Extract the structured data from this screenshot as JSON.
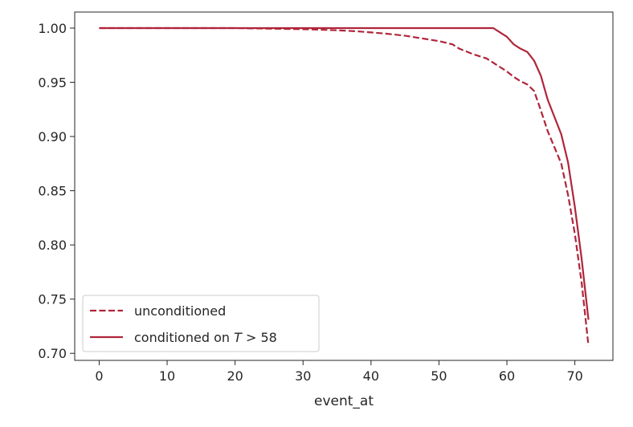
{
  "chart_data": {
    "type": "line",
    "title": "",
    "xlabel": "event_at",
    "ylabel": "",
    "xlim": [
      -3.6,
      75.6
    ],
    "ylim": [
      0.6935,
      1.0148
    ],
    "xticks": [
      0,
      10,
      20,
      30,
      40,
      50,
      60,
      70
    ],
    "yticks": [
      0.7,
      0.75,
      0.8,
      0.85,
      0.9,
      0.95,
      1.0
    ],
    "ytick_labels": [
      "0.70",
      "0.75",
      "0.80",
      "0.85",
      "0.90",
      "0.95",
      "1.00"
    ],
    "grid": false,
    "legend_position": "lower-left",
    "series": [
      {
        "name": "unconditioned",
        "style": "dashed",
        "color": "#b0253a",
        "x": [
          0,
          10,
          20,
          25,
          30,
          35,
          38,
          40,
          42,
          45,
          48,
          50,
          52,
          53,
          55,
          57,
          58,
          59,
          60,
          61,
          62,
          63,
          64,
          65,
          66,
          67,
          68,
          69,
          70,
          71,
          72
        ],
        "y": [
          1.0,
          1.0,
          1.0,
          0.9995,
          0.999,
          0.998,
          0.997,
          0.996,
          0.995,
          0.993,
          0.99,
          0.988,
          0.985,
          0.981,
          0.976,
          0.972,
          0.968,
          0.964,
          0.96,
          0.955,
          0.951,
          0.948,
          0.942,
          0.924,
          0.905,
          0.89,
          0.875,
          0.846,
          0.81,
          0.765,
          0.707
        ]
      },
      {
        "name": "conditioned on T > 58",
        "style": "solid",
        "color": "#b0253a",
        "x": [
          0,
          58,
          59,
          60,
          61,
          62,
          63,
          64,
          65,
          66,
          67,
          68,
          69,
          70,
          71,
          72
        ],
        "y": [
          1.0,
          1.0,
          0.996,
          0.992,
          0.985,
          0.981,
          0.978,
          0.97,
          0.956,
          0.934,
          0.918,
          0.902,
          0.876,
          0.835,
          0.787,
          0.731
        ]
      }
    ],
    "legend": {
      "entries": [
        {
          "label": "unconditioned",
          "style": "dashed"
        },
        {
          "label_prefix": "conditioned on ",
          "label_var": "T",
          "label_suffix": " > 58",
          "style": "solid"
        }
      ]
    }
  }
}
